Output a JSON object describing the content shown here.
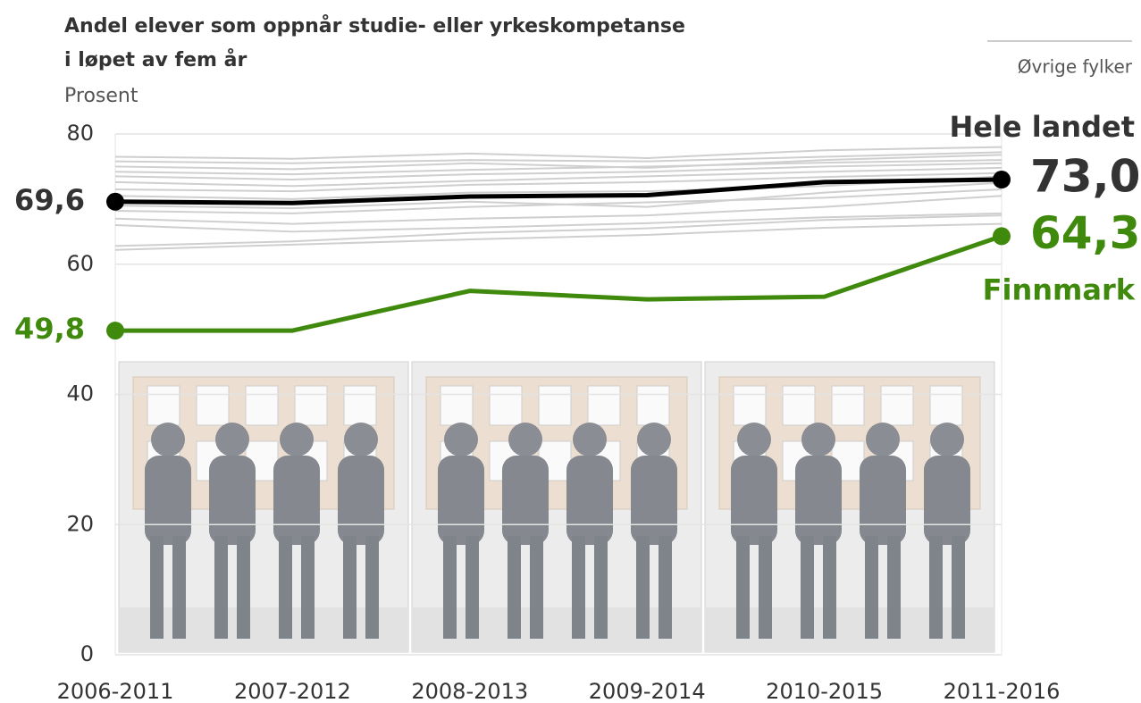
{
  "chart_data": {
    "type": "line",
    "title": [
      "Andel elever som oppnår studie- eller yrkeskompetanse",
      "i løpet av fem år"
    ],
    "subtitle": "Prosent",
    "categories": [
      "2006-2011",
      "2007-2012",
      "2008-2013",
      "2009-2014",
      "2010-2015",
      "2011-2016"
    ],
    "ylim": [
      0,
      80
    ],
    "yticks": [
      0,
      20,
      40,
      60,
      80
    ],
    "grid": true,
    "other_series": {
      "label": "Øvrige fylker",
      "color": "#cfcfcf",
      "values": [
        [
          76.5,
          76.2,
          77.0,
          76.3,
          77.5,
          78.0
        ],
        [
          75.8,
          75.5,
          76.0,
          75.8,
          76.5,
          77.2
        ],
        [
          75.0,
          74.6,
          75.5,
          74.8,
          76.0,
          76.8
        ],
        [
          74.2,
          73.8,
          74.5,
          75.0,
          75.6,
          76.0
        ],
        [
          73.5,
          73.0,
          73.8,
          74.2,
          75.0,
          75.5
        ],
        [
          72.6,
          72.0,
          72.8,
          73.5,
          74.2,
          74.8
        ],
        [
          71.5,
          71.2,
          72.2,
          72.6,
          73.4,
          74.0
        ],
        [
          70.5,
          70.0,
          71.0,
          71.2,
          72.0,
          73.5
        ],
        [
          69.0,
          68.6,
          69.6,
          68.8,
          71.0,
          72.5
        ],
        [
          68.2,
          67.8,
          68.8,
          69.5,
          70.2,
          71.5
        ],
        [
          67.0,
          66.2,
          67.0,
          67.5,
          68.8,
          70.5
        ],
        [
          66.0,
          65.0,
          65.6,
          66.3,
          67.2,
          67.8
        ],
        [
          62.8,
          63.5,
          64.8,
          65.5,
          66.8,
          67.5
        ],
        [
          62.2,
          63.0,
          63.8,
          64.5,
          65.6,
          66.2
        ]
      ]
    },
    "series": [
      {
        "name": "Hele landet",
        "color": "#000000",
        "values": [
          69.6,
          69.4,
          70.4,
          70.6,
          72.6,
          73.0
        ],
        "value_labels": [
          "69,6",
          null,
          null,
          null,
          null,
          "73,0"
        ]
      },
      {
        "name": "Finnmark",
        "color": "#3f8a0c",
        "values": [
          49.8,
          49.8,
          55.9,
          54.6,
          55.0,
          64.3
        ],
        "value_labels": [
          "49,8",
          null,
          null,
          null,
          null,
          "64,3"
        ]
      }
    ]
  }
}
